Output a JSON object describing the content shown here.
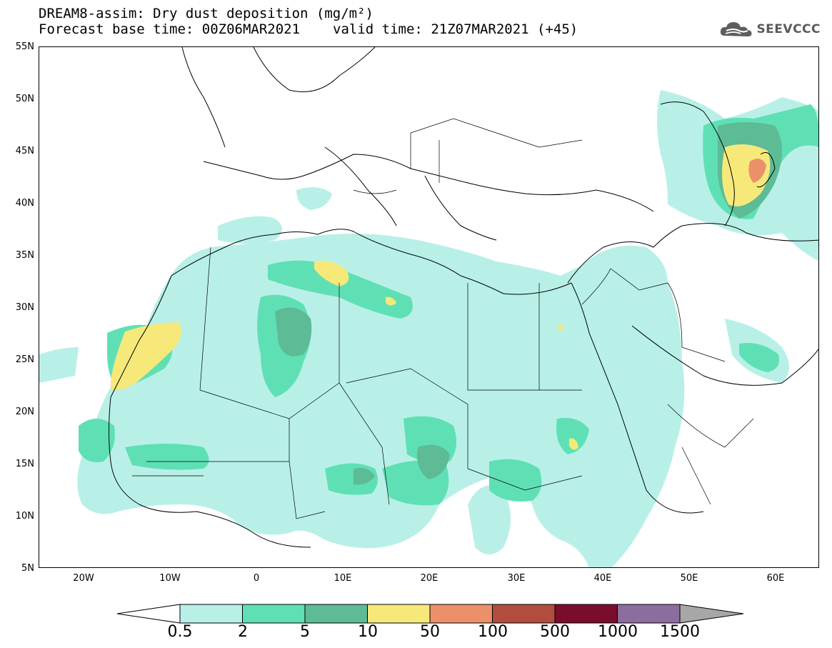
{
  "header": {
    "title": "DREAM8-assim: Dry dust deposition (mg/m²)",
    "base_time": "Forecast base time: 00Z06MAR2021",
    "valid_time": "valid time: 21Z07MAR2021 (+45)"
  },
  "logo": {
    "text": "SEEVCCC",
    "icon": "cloud-icon"
  },
  "map": {
    "lon_range": [
      -25,
      65
    ],
    "lat_range": [
      5,
      55
    ],
    "lat_labels": [
      "55N",
      "50N",
      "45N",
      "40N",
      "35N",
      "30N",
      "25N",
      "20N",
      "15N",
      "10N",
      "5N"
    ],
    "lon_labels": [
      "20W",
      "10W",
      "0",
      "10E",
      "20E",
      "30E",
      "40E",
      "50E",
      "60E"
    ]
  },
  "colorbar": {
    "labels": [
      "0.5",
      "2",
      "5",
      "10",
      "50",
      "100",
      "500",
      "1000",
      "1500"
    ],
    "colors": [
      "#b8f0e8",
      "#5fe0b4",
      "#5dbb96",
      "#f6e97a",
      "#ec9069",
      "#b24d3e",
      "#7b0d2c",
      "#8c6e9e"
    ],
    "colors_note_low": "#ffffff",
    "colors_note_high": "#a7a7a7"
  }
}
